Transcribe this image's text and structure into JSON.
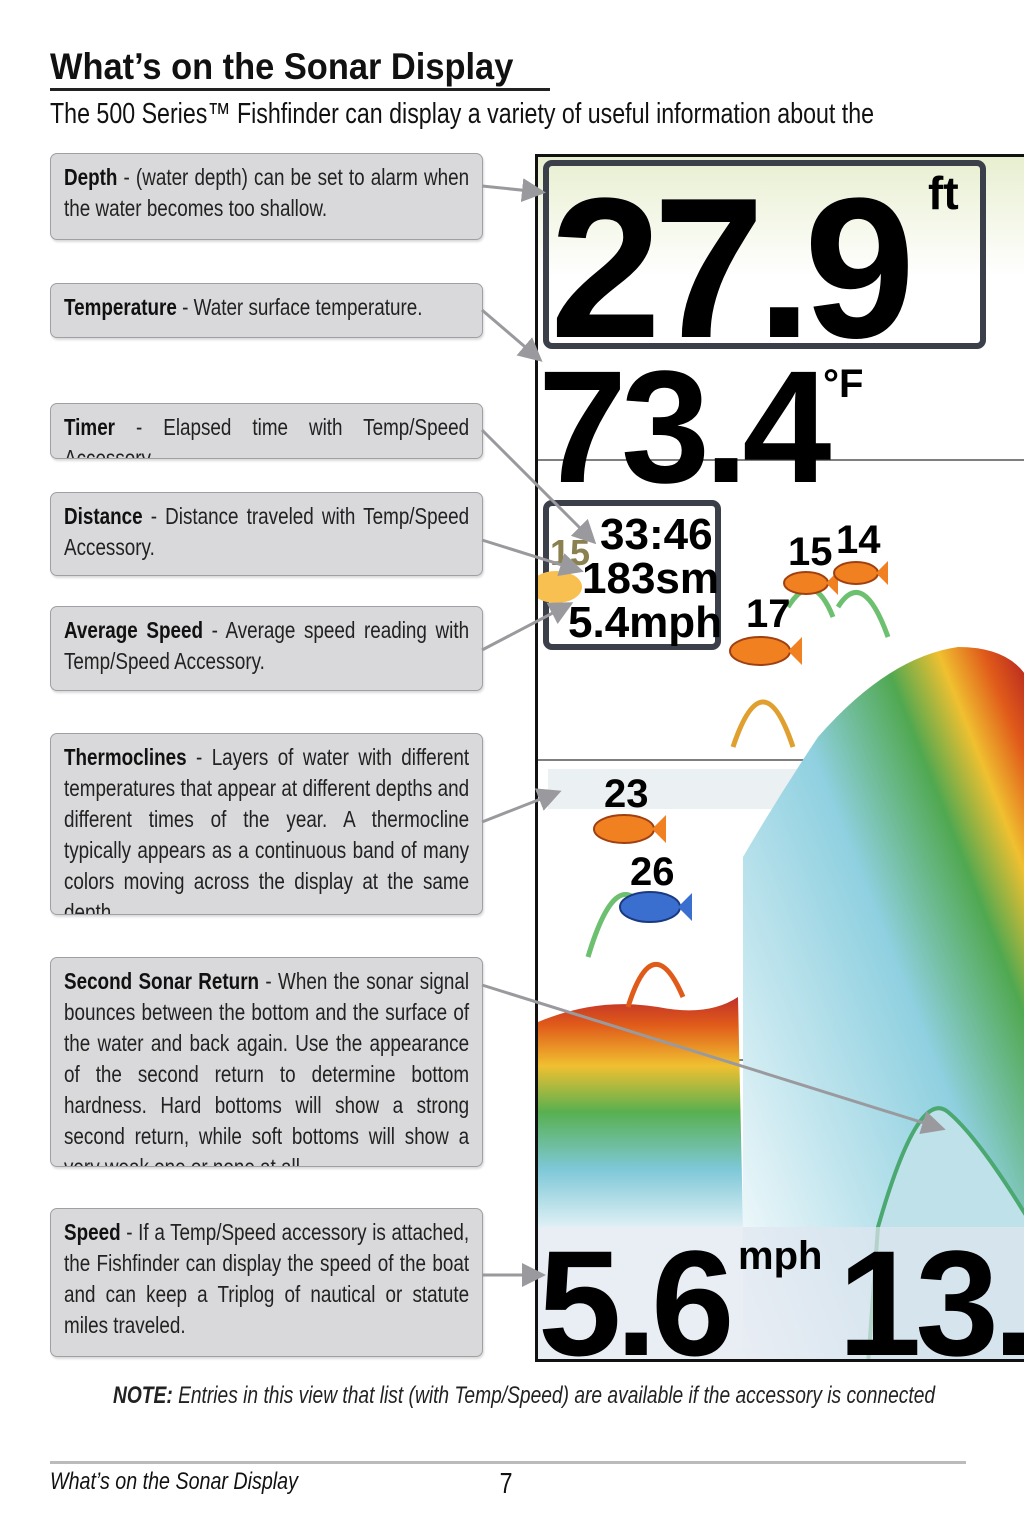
{
  "page": {
    "title": "What’s on the Sonar Display",
    "intro": "The 500 Series™ Fishfinder can display a variety of useful information about the",
    "note_label": "NOTE:",
    "note_text": " Entries in this view that list (with Temp/Speed) are available if the accessory is connected",
    "footer_title": "What’s on the Sonar Display",
    "page_number": "7"
  },
  "callouts": [
    {
      "term": "Depth",
      "text": " - (water depth) can be set to alarm when the water becomes too shallow."
    },
    {
      "term": "Temperature",
      "text": " - Water surface temperature."
    },
    {
      "term": "Timer",
      "text": " - Elapsed time with Temp/Speed Accessory."
    },
    {
      "term": "Distance",
      "text": " - Distance traveled with Temp/Speed Accessory."
    },
    {
      "term": "Average Speed",
      "text": " - Average speed reading with Temp/Speed Accessory."
    },
    {
      "term": "Thermoclines",
      "text": " - Layers of water with different temperatures that appear at different depths and different times of the year. A thermocline typically appears as a continuous band of many colors moving across the display at the same depth."
    },
    {
      "term": "Second Sonar Return",
      "text": " - When the sonar signal bounces between the bottom and the surface of the water and back again. Use the appearance of the second return to determine bottom hardness. Hard bottoms will show a strong second return, while soft bottoms will show a very weak one or none at all."
    },
    {
      "term": "Speed",
      "text": " - If a Temp/Speed accessory is attached, the Fishfinder can display the speed of the boat and can keep a Triplog of nautical or statute miles traveled."
    }
  ],
  "display": {
    "depth": "27.9",
    "depth_unit": "ft",
    "temperature": "73.4",
    "temperature_unit": "°F",
    "timer": "33:46",
    "distance": "183sm",
    "avg_speed": "5.4mph",
    "speed": "5.6",
    "speed_unit": "mph",
    "second_value": "13.",
    "fish_labels": [
      "15",
      "15",
      "14",
      "17",
      "23",
      "26"
    ],
    "colors": {
      "bottom_hard": "#e0401a",
      "bottom_mid": "#f0c020",
      "bottom_soft": "#3aa050",
      "fish": "#f08020",
      "fish_blue": "#3a6fd0"
    }
  }
}
